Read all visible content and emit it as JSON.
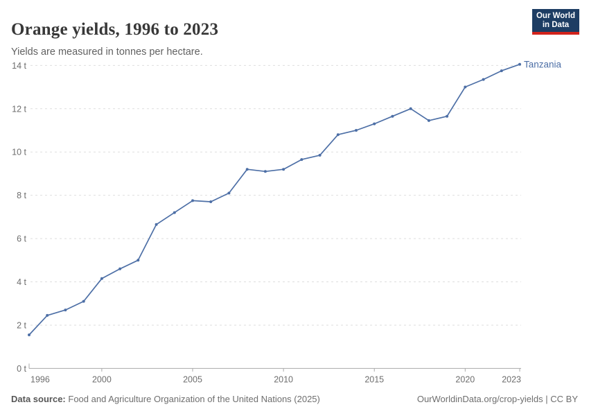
{
  "header": {
    "title": "Orange yields, 1996 to 2023",
    "subtitle": "Yields are measured in tonnes per hectare.",
    "logo": {
      "line1": "Our World",
      "line2": "in Data"
    }
  },
  "chart_data": {
    "type": "line",
    "title": "Orange yields, 1996 to 2023",
    "subtitle": "Yields are measured in tonnes per hectare.",
    "unit": "tonnes per hectare",
    "x": [
      1996,
      1997,
      1998,
      1999,
      2000,
      2001,
      2002,
      2003,
      2004,
      2005,
      2006,
      2007,
      2008,
      2009,
      2010,
      2011,
      2012,
      2013,
      2014,
      2015,
      2016,
      2017,
      2018,
      2019,
      2020,
      2021,
      2022,
      2023
    ],
    "series": [
      {
        "name": "Tanzania",
        "color": "#4d6fa6",
        "values": [
          1.55,
          2.45,
          2.7,
          3.1,
          4.15,
          4.6,
          5.0,
          6.65,
          7.2,
          7.75,
          7.7,
          8.1,
          9.2,
          9.1,
          9.2,
          9.65,
          9.85,
          10.8,
          11.0,
          11.3,
          11.65,
          12.0,
          11.45,
          11.65,
          13.0,
          13.35,
          13.75,
          14.05
        ]
      }
    ],
    "xlabel": "",
    "ylabel": "",
    "ylim": [
      0,
      14.5
    ],
    "y_ticks": [
      0,
      2,
      4,
      6,
      8,
      10,
      12,
      14
    ],
    "y_tick_format": "{v} t",
    "x_ticks": [
      1996,
      2000,
      2005,
      2010,
      2015,
      2020,
      2023
    ],
    "grid": "horizontal-dashed",
    "legend_position": "end-of-line-label"
  },
  "footer": {
    "source_label": "Data source:",
    "source_text": "Food and Agriculture Organization of the United Nations (2025)",
    "credit": "OurWorldinData.org/crop-yields | CC BY"
  },
  "colors": {
    "series_blue": "#4d6fa6",
    "grid": "#dedede",
    "axis": "#a9a9a9",
    "tick_text": "#6e6e6e",
    "title": "#383838",
    "logo_bg": "#1d3d63",
    "logo_red": "#d2231c"
  }
}
